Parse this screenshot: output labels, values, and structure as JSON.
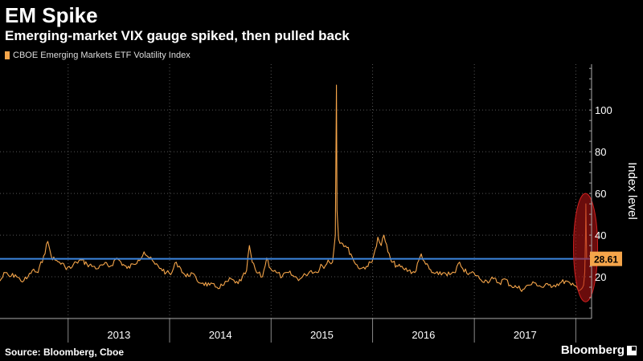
{
  "header": {
    "title": "EM Spike",
    "subtitle": "Emerging-market VIX gauge spiked, then pulled back"
  },
  "footer": {
    "source": "Source: Bloomberg, Cboe",
    "brand": "Bloomberg"
  },
  "chart_data": {
    "type": "line",
    "legend": [
      "CBOE Emerging Markets ETF Volatility Index"
    ],
    "legend_placement": "top-left",
    "ylabel": "Index level",
    "ylabel_position": "right",
    "yticks": [
      20,
      40,
      60,
      80,
      100
    ],
    "ylim": [
      0,
      122
    ],
    "xlim": [
      "2012-05-01",
      "2018-02-15"
    ],
    "xticks": [
      "2013",
      "2014",
      "2015",
      "2016",
      "2017"
    ],
    "grid": true,
    "colors": {
      "series": "#f5a54a",
      "reference_line": "#3d86e0",
      "callout_bg": "#f5a54a",
      "highlight_ellipse": "#b01414"
    },
    "reference_line": {
      "value": 28.61,
      "label": "28.61"
    },
    "highlight": {
      "type": "ellipse",
      "x_center": "2018-02-05",
      "y_range": [
        8,
        60
      ]
    },
    "series": [
      {
        "points": [
          [
            "2012-05-01",
            18
          ],
          [
            "2012-05-20",
            22
          ],
          [
            "2012-06-05",
            20
          ],
          [
            "2012-06-25",
            21
          ],
          [
            "2012-07-15",
            18
          ],
          [
            "2012-08-05",
            19
          ],
          [
            "2012-08-25",
            23
          ],
          [
            "2012-09-15",
            22
          ],
          [
            "2012-10-05",
            30
          ],
          [
            "2012-10-20",
            37
          ],
          [
            "2012-11-01",
            30
          ],
          [
            "2012-11-15",
            28
          ],
          [
            "2012-12-01",
            27
          ],
          [
            "2012-12-20",
            25
          ],
          [
            "2013-01-10",
            24
          ],
          [
            "2013-01-30",
            27
          ],
          [
            "2013-02-20",
            28
          ],
          [
            "2013-03-10",
            26
          ],
          [
            "2013-04-01",
            25
          ],
          [
            "2013-04-20",
            24
          ],
          [
            "2013-05-10",
            26
          ],
          [
            "2013-06-01",
            25
          ],
          [
            "2013-06-25",
            29
          ],
          [
            "2013-07-10",
            27
          ],
          [
            "2013-08-01",
            24
          ],
          [
            "2013-08-25",
            26
          ],
          [
            "2013-09-10",
            28
          ],
          [
            "2013-10-01",
            32
          ],
          [
            "2013-10-20",
            29
          ],
          [
            "2013-11-10",
            26
          ],
          [
            "2013-12-01",
            24
          ],
          [
            "2013-12-20",
            22
          ],
          [
            "2014-01-05",
            21
          ],
          [
            "2014-01-25",
            27
          ],
          [
            "2014-02-10",
            24
          ],
          [
            "2014-03-01",
            20
          ],
          [
            "2014-03-20",
            22
          ],
          [
            "2014-04-10",
            18
          ],
          [
            "2014-05-01",
            17
          ],
          [
            "2014-05-25",
            16
          ],
          [
            "2014-06-20",
            15
          ],
          [
            "2014-07-15",
            16
          ],
          [
            "2014-08-10",
            19
          ],
          [
            "2014-08-25",
            17
          ],
          [
            "2014-09-15",
            18
          ],
          [
            "2014-10-05",
            23
          ],
          [
            "2014-10-15",
            35
          ],
          [
            "2014-10-25",
            27
          ],
          [
            "2014-11-10",
            22
          ],
          [
            "2014-12-01",
            20
          ],
          [
            "2014-12-16",
            29
          ],
          [
            "2014-12-30",
            24
          ],
          [
            "2015-01-20",
            22
          ],
          [
            "2015-02-10",
            20
          ],
          [
            "2015-03-05",
            22
          ],
          [
            "2015-03-25",
            20
          ],
          [
            "2015-04-15",
            19
          ],
          [
            "2015-05-05",
            21
          ],
          [
            "2015-05-25",
            23
          ],
          [
            "2015-06-15",
            22
          ],
          [
            "2015-06-29",
            26
          ],
          [
            "2015-07-10",
            24
          ],
          [
            "2015-07-25",
            28
          ],
          [
            "2015-08-10",
            27
          ],
          [
            "2015-08-20",
            40
          ],
          [
            "2015-08-24",
            112
          ],
          [
            "2015-08-26",
            52
          ],
          [
            "2015-09-01",
            38
          ],
          [
            "2015-09-15",
            36
          ],
          [
            "2015-10-01",
            34
          ],
          [
            "2015-10-15",
            31
          ],
          [
            "2015-11-01",
            26
          ],
          [
            "2015-11-20",
            24
          ],
          [
            "2015-12-10",
            25
          ],
          [
            "2015-12-30",
            27
          ],
          [
            "2016-01-10",
            33
          ],
          [
            "2016-01-20",
            39
          ],
          [
            "2016-02-01",
            35
          ],
          [
            "2016-02-11",
            40
          ],
          [
            "2016-02-25",
            32
          ],
          [
            "2016-03-10",
            27
          ],
          [
            "2016-04-01",
            25
          ],
          [
            "2016-04-20",
            24
          ],
          [
            "2016-05-10",
            23
          ],
          [
            "2016-06-01",
            22
          ],
          [
            "2016-06-24",
            31
          ],
          [
            "2016-07-10",
            26
          ],
          [
            "2016-08-01",
            22
          ],
          [
            "2016-08-25",
            21
          ],
          [
            "2016-09-15",
            22
          ],
          [
            "2016-10-05",
            21
          ],
          [
            "2016-10-25",
            22
          ],
          [
            "2016-11-09",
            27
          ],
          [
            "2016-11-20",
            24
          ],
          [
            "2016-12-10",
            21
          ],
          [
            "2016-12-30",
            22
          ],
          [
            "2017-01-20",
            19
          ],
          [
            "2017-02-15",
            18
          ],
          [
            "2017-03-10",
            19
          ],
          [
            "2017-04-01",
            17
          ],
          [
            "2017-04-20",
            19
          ],
          [
            "2017-05-10",
            16
          ],
          [
            "2017-06-01",
            15
          ],
          [
            "2017-06-25",
            14
          ],
          [
            "2017-07-15",
            16
          ],
          [
            "2017-08-10",
            17
          ],
          [
            "2017-09-01",
            15
          ],
          [
            "2017-09-25",
            16
          ],
          [
            "2017-10-15",
            16
          ],
          [
            "2017-11-05",
            17
          ],
          [
            "2017-11-25",
            18
          ],
          [
            "2017-12-15",
            16
          ],
          [
            "2018-01-05",
            15
          ],
          [
            "2018-01-20",
            14
          ],
          [
            "2018-01-29",
            16
          ],
          [
            "2018-02-02",
            22
          ],
          [
            "2018-02-05",
            40
          ],
          [
            "2018-02-06",
            55
          ],
          [
            "2018-02-08",
            36
          ],
          [
            "2018-02-09",
            28.61
          ]
        ]
      }
    ]
  }
}
